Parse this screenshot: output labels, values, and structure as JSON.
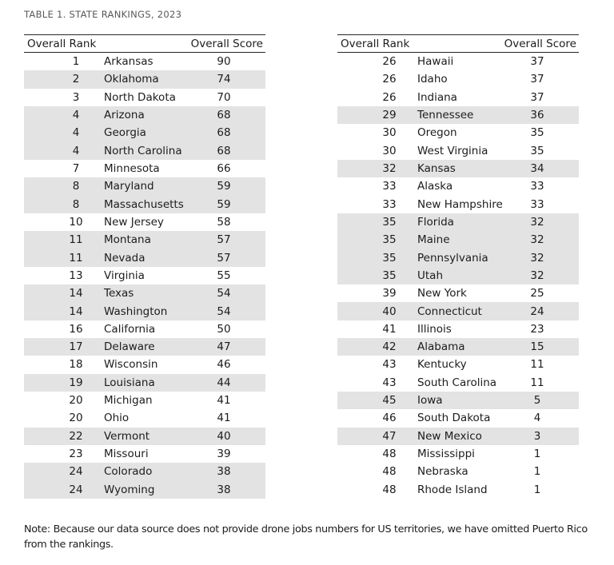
{
  "title": "TABLE 1. STATE RANKINGS, 2023",
  "columns": {
    "rank": "Overall Rank",
    "score": "Overall Score"
  },
  "colors": {
    "row_shade": "#e4e3e3",
    "border": "#262626",
    "body_text": "#1c1c1c",
    "title_text": "#595959"
  },
  "tables": [
    {
      "rows": [
        {
          "rank": 1,
          "state": "Arkansas",
          "score": 90,
          "shaded": false
        },
        {
          "rank": 2,
          "state": "Oklahoma",
          "score": 74,
          "shaded": true
        },
        {
          "rank": 3,
          "state": "North Dakota",
          "score": 70,
          "shaded": false
        },
        {
          "rank": 4,
          "state": "Arizona",
          "score": 68,
          "shaded": true
        },
        {
          "rank": 4,
          "state": "Georgia",
          "score": 68,
          "shaded": true
        },
        {
          "rank": 4,
          "state": "North Carolina",
          "score": 68,
          "shaded": true
        },
        {
          "rank": 7,
          "state": "Minnesota",
          "score": 66,
          "shaded": false
        },
        {
          "rank": 8,
          "state": "Maryland",
          "score": 59,
          "shaded": true
        },
        {
          "rank": 8,
          "state": "Massachusetts",
          "score": 59,
          "shaded": true
        },
        {
          "rank": 10,
          "state": "New Jersey",
          "score": 58,
          "shaded": false
        },
        {
          "rank": 11,
          "state": "Montana",
          "score": 57,
          "shaded": true
        },
        {
          "rank": 11,
          "state": "Nevada",
          "score": 57,
          "shaded": true
        },
        {
          "rank": 13,
          "state": "Virginia",
          "score": 55,
          "shaded": false
        },
        {
          "rank": 14,
          "state": "Texas",
          "score": 54,
          "shaded": true
        },
        {
          "rank": 14,
          "state": "Washington",
          "score": 54,
          "shaded": true
        },
        {
          "rank": 16,
          "state": "California",
          "score": 50,
          "shaded": false
        },
        {
          "rank": 17,
          "state": "Delaware",
          "score": 47,
          "shaded": true
        },
        {
          "rank": 18,
          "state": "Wisconsin",
          "score": 46,
          "shaded": false
        },
        {
          "rank": 19,
          "state": "Louisiana",
          "score": 44,
          "shaded": true
        },
        {
          "rank": 20,
          "state": "Michigan",
          "score": 41,
          "shaded": false
        },
        {
          "rank": 20,
          "state": "Ohio",
          "score": 41,
          "shaded": false
        },
        {
          "rank": 22,
          "state": "Vermont",
          "score": 40,
          "shaded": true
        },
        {
          "rank": 23,
          "state": "Missouri",
          "score": 39,
          "shaded": false
        },
        {
          "rank": 24,
          "state": "Colorado",
          "score": 38,
          "shaded": true
        },
        {
          "rank": 24,
          "state": "Wyoming",
          "score": 38,
          "shaded": true
        }
      ]
    },
    {
      "rows": [
        {
          "rank": 26,
          "state": "Hawaii",
          "score": 37,
          "shaded": false
        },
        {
          "rank": 26,
          "state": "Idaho",
          "score": 37,
          "shaded": false
        },
        {
          "rank": 26,
          "state": "Indiana",
          "score": 37,
          "shaded": false
        },
        {
          "rank": 29,
          "state": "Tennessee",
          "score": 36,
          "shaded": true
        },
        {
          "rank": 30,
          "state": "Oregon",
          "score": 35,
          "shaded": false
        },
        {
          "rank": 30,
          "state": "West Virginia",
          "score": 35,
          "shaded": false
        },
        {
          "rank": 32,
          "state": "Kansas",
          "score": 34,
          "shaded": true
        },
        {
          "rank": 33,
          "state": "Alaska",
          "score": 33,
          "shaded": false
        },
        {
          "rank": 33,
          "state": "New Hampshire",
          "score": 33,
          "shaded": false
        },
        {
          "rank": 35,
          "state": "Florida",
          "score": 32,
          "shaded": true
        },
        {
          "rank": 35,
          "state": "Maine",
          "score": 32,
          "shaded": true
        },
        {
          "rank": 35,
          "state": "Pennsylvania",
          "score": 32,
          "shaded": true
        },
        {
          "rank": 35,
          "state": "Utah",
          "score": 32,
          "shaded": true
        },
        {
          "rank": 39,
          "state": "New York",
          "score": 25,
          "shaded": false
        },
        {
          "rank": 40,
          "state": "Connecticut",
          "score": 24,
          "shaded": true
        },
        {
          "rank": 41,
          "state": "Illinois",
          "score": 23,
          "shaded": false
        },
        {
          "rank": 42,
          "state": "Alabama",
          "score": 15,
          "shaded": true
        },
        {
          "rank": 43,
          "state": "Kentucky",
          "score": 11,
          "shaded": false
        },
        {
          "rank": 43,
          "state": "South Carolina",
          "score": 11,
          "shaded": false
        },
        {
          "rank": 45,
          "state": "Iowa",
          "score": 5,
          "shaded": true
        },
        {
          "rank": 46,
          "state": "South Dakota",
          "score": 4,
          "shaded": false
        },
        {
          "rank": 47,
          "state": "New Mexico",
          "score": 3,
          "shaded": true
        },
        {
          "rank": 48,
          "state": "Mississippi",
          "score": 1,
          "shaded": false
        },
        {
          "rank": 48,
          "state": "Nebraska",
          "score": 1,
          "shaded": false
        },
        {
          "rank": 48,
          "state": "Rhode Island",
          "score": 1,
          "shaded": false
        }
      ]
    }
  ],
  "note": {
    "line1": "Note: Because our data source does not provide drone jobs numbers for US territories, we have omitted Puerto Rico",
    "line2": "from the rankings."
  }
}
